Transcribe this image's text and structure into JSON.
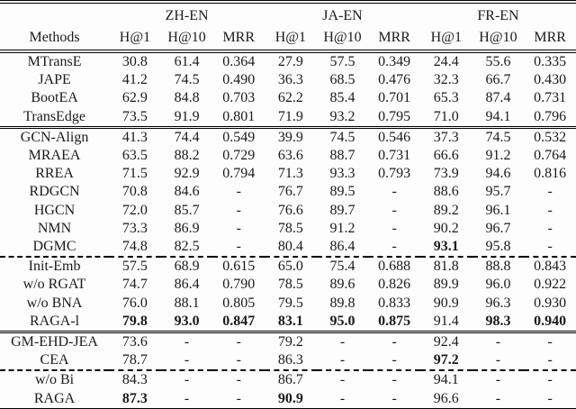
{
  "table": {
    "methods_header": "Methods",
    "col_groups": [
      {
        "label": "ZH-EN"
      },
      {
        "label": "JA-EN"
      },
      {
        "label": "FR-EN"
      }
    ],
    "sub_headers": [
      "H@1",
      "H@10",
      "MRR"
    ],
    "empty_cell": "-",
    "text_color": "#1a1a1a",
    "rule_color": "#000000",
    "rows": [
      {
        "method": "MTransE",
        "values": [
          "30.8",
          "61.4",
          "0.364",
          "27.9",
          "57.5",
          "0.349",
          "24.4",
          "55.6",
          "0.335"
        ],
        "bold": [],
        "rule_after": null
      },
      {
        "method": "JAPE",
        "values": [
          "41.2",
          "74.5",
          "0.490",
          "36.3",
          "68.5",
          "0.476",
          "32.3",
          "66.7",
          "0.430"
        ],
        "bold": [],
        "rule_after": null
      },
      {
        "method": "BootEA",
        "values": [
          "62.9",
          "84.8",
          "0.703",
          "62.2",
          "85.4",
          "0.701",
          "65.3",
          "87.4",
          "0.731"
        ],
        "bold": [],
        "rule_after": null
      },
      {
        "method": "TransEdge",
        "values": [
          "73.5",
          "91.9",
          "0.801",
          "71.9",
          "93.2",
          "0.795",
          "71.0",
          "94.1",
          "0.796"
        ],
        "bold": [],
        "rule_after": "double"
      },
      {
        "method": "GCN-Align",
        "values": [
          "41.3",
          "74.4",
          "0.549",
          "39.9",
          "74.5",
          "0.546",
          "37.3",
          "74.5",
          "0.532"
        ],
        "bold": [],
        "rule_after": null
      },
      {
        "method": "MRAEA",
        "values": [
          "63.5",
          "88.2",
          "0.729",
          "63.6",
          "88.7",
          "0.731",
          "66.6",
          "91.2",
          "0.764"
        ],
        "bold": [],
        "rule_after": null
      },
      {
        "method": "RREA",
        "values": [
          "71.5",
          "92.9",
          "0.794",
          "71.3",
          "93.3",
          "0.793",
          "73.9",
          "94.6",
          "0.816"
        ],
        "bold": [],
        "rule_after": null
      },
      {
        "method": "RDGCN",
        "values": [
          "70.8",
          "84.6",
          "-",
          "76.7",
          "89.5",
          "-",
          "88.6",
          "95.7",
          "-"
        ],
        "bold": [],
        "rule_after": null
      },
      {
        "method": "HGCN",
        "values": [
          "72.0",
          "85.7",
          "-",
          "76.6",
          "89.7",
          "-",
          "89.2",
          "96.1",
          "-"
        ],
        "bold": [],
        "rule_after": null
      },
      {
        "method": "NMN",
        "values": [
          "73.3",
          "86.9",
          "-",
          "78.5",
          "91.2",
          "-",
          "90.2",
          "96.7",
          "-"
        ],
        "bold": [],
        "rule_after": null
      },
      {
        "method": "DGMC",
        "values": [
          "74.8",
          "82.5",
          "-",
          "80.4",
          "86.4",
          "-",
          "93.1",
          "95.8",
          "-"
        ],
        "bold": [
          6
        ],
        "rule_after": "dashed"
      },
      {
        "method": "Init-Emb",
        "values": [
          "57.5",
          "68.9",
          "0.615",
          "65.0",
          "75.4",
          "0.688",
          "81.8",
          "88.8",
          "0.843"
        ],
        "bold": [],
        "rule_after": null
      },
      {
        "method": "w/o RGAT",
        "values": [
          "74.7",
          "86.4",
          "0.790",
          "78.5",
          "89.6",
          "0.826",
          "89.9",
          "96.0",
          "0.922"
        ],
        "bold": [],
        "rule_after": null
      },
      {
        "method": "w/o BNA",
        "values": [
          "76.0",
          "88.1",
          "0.805",
          "79.5",
          "89.8",
          "0.833",
          "90.9",
          "96.3",
          "0.930"
        ],
        "bold": [],
        "rule_after": null
      },
      {
        "method": "RAGA-l",
        "values": [
          "79.8",
          "93.0",
          "0.847",
          "83.1",
          "95.0",
          "0.875",
          "91.4",
          "98.3",
          "0.940"
        ],
        "bold": [
          0,
          1,
          2,
          3,
          4,
          5,
          7,
          8
        ],
        "rule_after": "double"
      },
      {
        "method": "GM-EHD-JEA",
        "values": [
          "73.6",
          "-",
          "-",
          "79.2",
          "-",
          "-",
          "92.4",
          "-",
          "-"
        ],
        "bold": [],
        "rule_after": null
      },
      {
        "method": "CEA",
        "values": [
          "78.7",
          "-",
          "-",
          "86.3",
          "-",
          "-",
          "97.2",
          "-",
          "-"
        ],
        "bold": [
          6
        ],
        "rule_after": "dashed"
      },
      {
        "method": "w/o Bi",
        "values": [
          "84.3",
          "-",
          "-",
          "86.7",
          "-",
          "-",
          "94.1",
          "-",
          "-"
        ],
        "bold": [],
        "rule_after": null
      },
      {
        "method": "RAGA",
        "values": [
          "87.3",
          "-",
          "-",
          "90.9",
          "-",
          "-",
          "96.6",
          "-",
          "-"
        ],
        "bold": [
          0,
          3
        ],
        "rule_after": "bottom"
      }
    ]
  }
}
